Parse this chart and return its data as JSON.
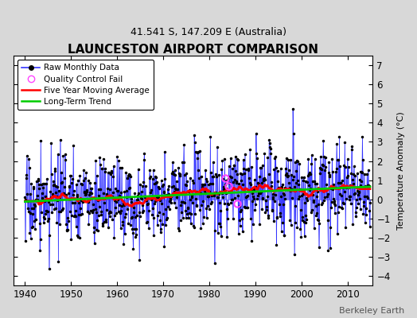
{
  "title": "LAUNCESTON AIRPORT COMPARISON",
  "subtitle": "41.541 S, 147.209 E (Australia)",
  "ylabel": "Temperature Anomaly (°C)",
  "credit": "Berkeley Earth",
  "ylim": [
    -4.5,
    7.5
  ],
  "yticks": [
    -4,
    -3,
    -2,
    -1,
    0,
    1,
    2,
    3,
    4,
    5,
    6,
    7
  ],
  "xlim": [
    1937.5,
    2015.5
  ],
  "xticks": [
    1940,
    1950,
    1960,
    1970,
    1980,
    1990,
    2000,
    2010
  ],
  "plot_bg": "#ffffff",
  "fig_bg": "#d8d8d8",
  "raw_line_color": "#3333ff",
  "raw_fill_color": "#aaaaff",
  "ma_color": "#ff0000",
  "trend_color": "#00cc00",
  "qc_color": "#ff44ff",
  "dot_color": "#000000",
  "grid_color": "#ffffff",
  "seed": 17
}
